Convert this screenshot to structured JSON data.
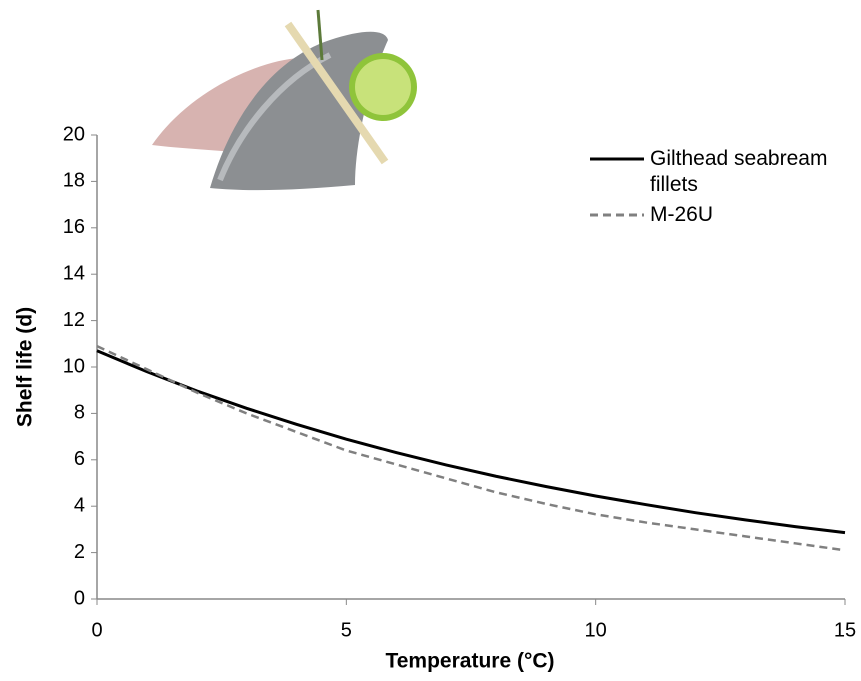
{
  "chart_data": {
    "type": "line",
    "x_label": "Temperature (°C)",
    "y_label": "Shelf life (d)",
    "x": [
      0,
      1,
      2,
      3,
      4,
      5,
      6,
      7,
      8,
      9,
      10,
      11,
      12,
      13,
      14,
      15
    ],
    "series": [
      {
        "name": "Gilthead seabream fillets",
        "color": "#000000",
        "dash": false,
        "values": [
          10.7,
          9.8,
          8.97,
          8.22,
          7.53,
          6.89,
          6.31,
          5.78,
          5.29,
          4.85,
          4.44,
          4.07,
          3.72,
          3.41,
          3.12,
          2.86
        ]
      },
      {
        "name": "M-26U",
        "color": "#808080",
        "dash": true,
        "values": [
          10.9,
          9.9,
          8.9,
          8.0,
          7.2,
          6.4,
          5.8,
          5.2,
          4.6,
          4.1,
          3.65,
          3.3,
          3.0,
          2.7,
          2.4,
          2.1
        ]
      }
    ],
    "xlim": [
      0,
      15
    ],
    "xticks": [
      0,
      5,
      10,
      15
    ],
    "ylim": [
      0,
      20
    ],
    "yticks": [
      0,
      2,
      4,
      6,
      8,
      10,
      12,
      14,
      16,
      18,
      20
    ],
    "grid": false
  }
}
